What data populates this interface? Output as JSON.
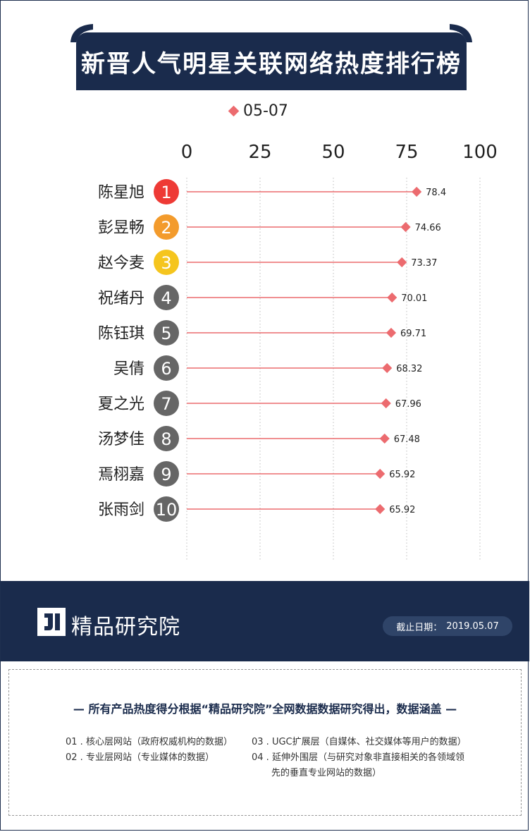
{
  "title": "新晋人气明星关联网络热度排行榜",
  "legend": {
    "label": "05-07",
    "color": "#ec6b6f"
  },
  "chart_data": {
    "type": "lollipop",
    "orientation": "horizontal",
    "series": [
      {
        "name": "05-07",
        "color": "#ec6b6f"
      }
    ],
    "xlim": [
      0,
      100
    ],
    "xticks": [
      0,
      25,
      50,
      75,
      100
    ],
    "grid": "vertical-dotted",
    "categories": [
      "陈星旭",
      "彭昱畅",
      "赵今麦",
      "祝绪丹",
      "陈钰琪",
      "吴倩",
      "夏之光",
      "汤梦佳",
      "焉栩嘉",
      "张雨剑"
    ],
    "ranks": [
      "1",
      "2",
      "3",
      "4",
      "5",
      "6",
      "7",
      "8",
      "9",
      "10"
    ],
    "rank_colors": [
      "#ee3a35",
      "#f39b2c",
      "#f5c51e",
      "#666666",
      "#666666",
      "#666666",
      "#666666",
      "#666666",
      "#666666",
      "#666666"
    ],
    "values": [
      78.4,
      74.66,
      73.37,
      70.01,
      69.71,
      68.32,
      67.96,
      67.48,
      65.92,
      65.92
    ],
    "value_labels": [
      "78.4",
      "74.66",
      "73.37",
      "70.01",
      "69.71",
      "68.32",
      "67.96",
      "67.48",
      "65.92",
      "65.92"
    ]
  },
  "footer": {
    "brand": "精品研究院",
    "date_label": "截止日期：",
    "date_value": "2019.05.07"
  },
  "notes": {
    "heading": "— 所有产品热度得分根据“精品研究院”全网数据数据研究得出，数据涵盖 —",
    "items": [
      "01 . 核心层网站（政府权威机构的数据）",
      "02 . 专业层网站（专业媒体的数据）",
      "03 . UGC扩展层（自媒体、社交媒体等用户的数据）",
      "04 . 延伸外围层（与研究对象非直接相关的各领域领",
      "先的垂直专业网站的数据）"
    ]
  }
}
